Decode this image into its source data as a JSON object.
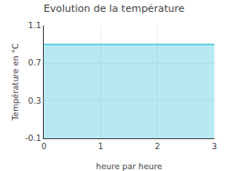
{
  "chart_data": {
    "type": "area",
    "title": "Evolution de la température",
    "xlabel": "heure par heure",
    "ylabel": "Température en °C",
    "x": [
      0,
      3
    ],
    "values": [
      0.9,
      0.9
    ],
    "color": "#4cc8e0",
    "xlim": [
      0,
      3
    ],
    "ylim": [
      -0.1,
      1.1
    ],
    "xticks": [
      0,
      1,
      2,
      3
    ],
    "yticks": [
      -0.1,
      0.3,
      0.7,
      1.1
    ],
    "grid": true
  }
}
